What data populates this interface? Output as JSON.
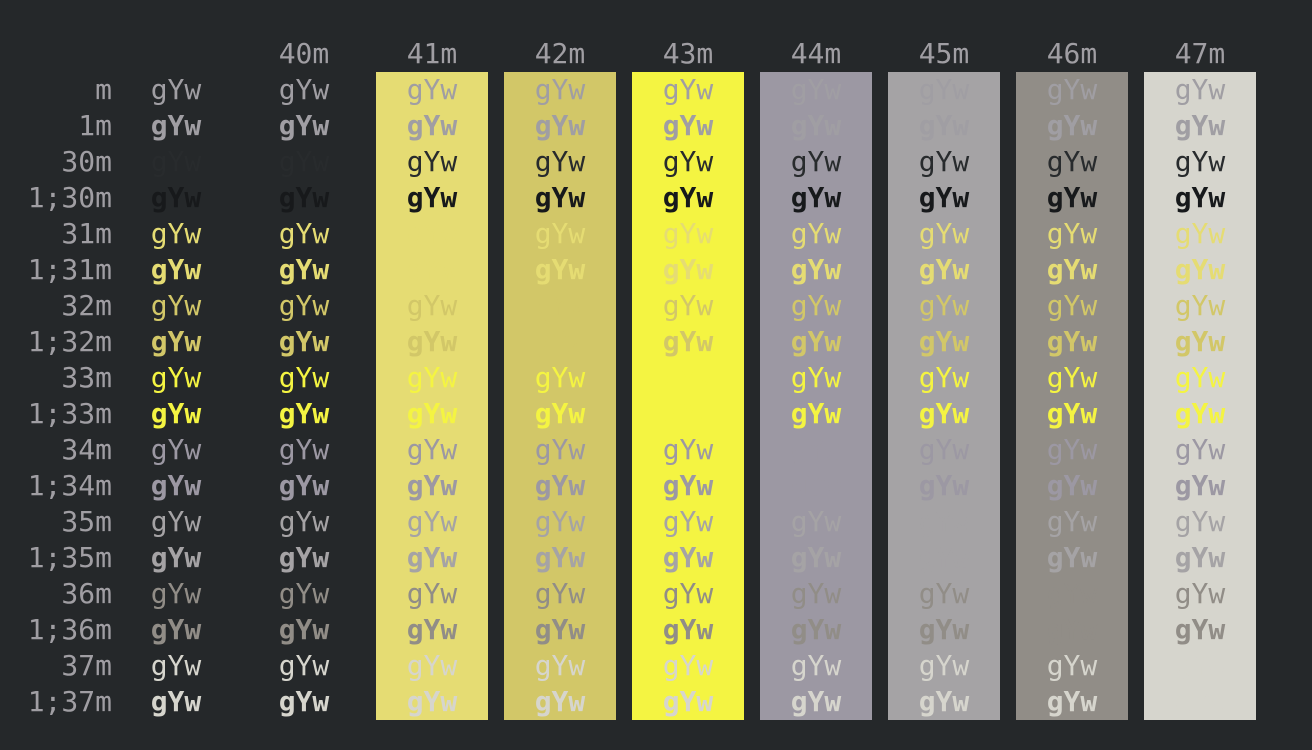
{
  "terminal": {
    "description": "ANSI terminal color test grid showing foreground escape codes (rows) against background escape codes (columns) with sample text",
    "cell_text": "gYw",
    "palette": {
      "background": "#25282a",
      "foreground": "#a09ea3",
      "black": "#282b2d",
      "bright_black": "#17191b",
      "red": "#e5dc73",
      "green": "#d2c768",
      "yellow": "#f4f442",
      "blue": "#9c98a3",
      "magenta": "#a5a3a5",
      "cyan": "#918d87",
      "white": "#d6d5cd"
    },
    "columns": [
      {
        "header": "",
        "bg": null
      },
      {
        "header": "40m",
        "bg": null
      },
      {
        "header": "41m",
        "bg": "red"
      },
      {
        "header": "42m",
        "bg": "green"
      },
      {
        "header": "43m",
        "bg": "yellow"
      },
      {
        "header": "44m",
        "bg": "blue"
      },
      {
        "header": "45m",
        "bg": "magenta"
      },
      {
        "header": "46m",
        "bg": "cyan"
      },
      {
        "header": "47m",
        "bg": "white"
      }
    ],
    "rows": [
      {
        "label": "m",
        "fg": "foreground",
        "bold": false
      },
      {
        "label": "1m",
        "fg": "foreground",
        "bold": true
      },
      {
        "label": "30m",
        "fg": "black",
        "bold": false
      },
      {
        "label": "1;30m",
        "fg": "bright_black",
        "bold": true
      },
      {
        "label": "31m",
        "fg": "red",
        "bold": false
      },
      {
        "label": "1;31m",
        "fg": "red",
        "bold": true
      },
      {
        "label": "32m",
        "fg": "green",
        "bold": false
      },
      {
        "label": "1;32m",
        "fg": "green",
        "bold": true
      },
      {
        "label": "33m",
        "fg": "yellow",
        "bold": false
      },
      {
        "label": "1;33m",
        "fg": "yellow",
        "bold": true
      },
      {
        "label": "34m",
        "fg": "blue",
        "bold": false
      },
      {
        "label": "1;34m",
        "fg": "blue",
        "bold": true
      },
      {
        "label": "35m",
        "fg": "magenta",
        "bold": false
      },
      {
        "label": "1;35m",
        "fg": "magenta",
        "bold": true
      },
      {
        "label": "36m",
        "fg": "cyan",
        "bold": false
      },
      {
        "label": "1;36m",
        "fg": "cyan",
        "bold": true
      },
      {
        "label": "37m",
        "fg": "white",
        "bold": false
      },
      {
        "label": "1;37m",
        "fg": "white",
        "bold": true
      }
    ]
  }
}
